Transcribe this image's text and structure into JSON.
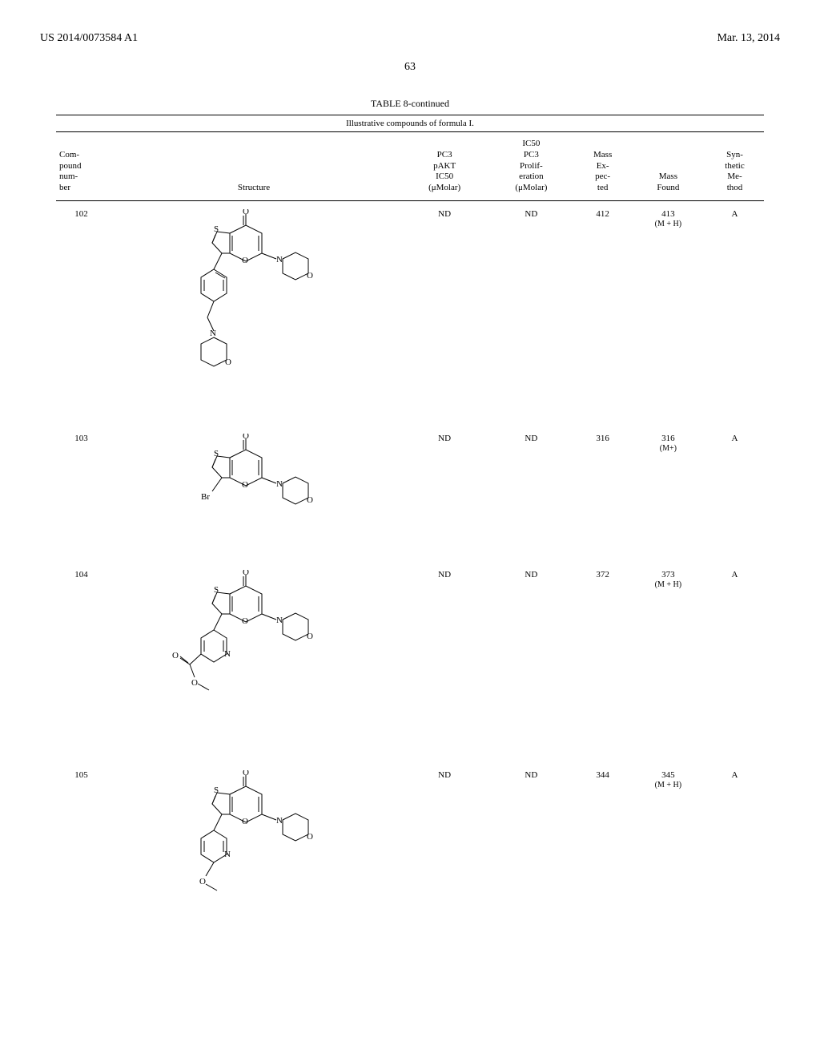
{
  "header": {
    "pub_number": "US 2014/0073584 A1",
    "pub_date": "Mar. 13, 2014",
    "page_number": "63"
  },
  "table": {
    "title": "TABLE 8-continued",
    "subtitle": "Illustrative compounds of formula I.",
    "columns": {
      "compound": "Com-\npound\nnum-\nber",
      "structure": "Structure",
      "pakt": "PC3\npAKT\nIC50\n(μMolar)",
      "prolif": "IC50\nPC3\nProlif-\neration\n(μMolar)",
      "mass_exp": "Mass\nEx-\npec-\nted",
      "mass_found": "Mass\nFound",
      "method": "Syn-\nthetic\nMe-\nthod"
    },
    "rows": [
      {
        "compound": "102",
        "pakt": "ND",
        "prolif": "ND",
        "mass_exp": "412",
        "mass_found": "413",
        "mass_found_sub": "(M + H)",
        "method": "A",
        "structure_height": 260
      },
      {
        "compound": "103",
        "pakt": "ND",
        "prolif": "ND",
        "mass_exp": "316",
        "mass_found": "316",
        "mass_found_sub": "(M+)",
        "method": "A",
        "structure_height": 150
      },
      {
        "compound": "104",
        "pakt": "ND",
        "prolif": "ND",
        "mass_exp": "372",
        "mass_found": "373",
        "mass_found_sub": "(M + H)",
        "method": "A",
        "structure_height": 230
      },
      {
        "compound": "105",
        "pakt": "ND",
        "prolif": "ND",
        "mass_exp": "344",
        "mass_found": "345",
        "mass_found_sub": "(M + H)",
        "method": "A",
        "structure_height": 210
      }
    ],
    "styling": {
      "border_color": "#000000",
      "background_color": "#ffffff",
      "header_fontsize": 11,
      "body_fontsize": 11,
      "title_fontsize": 12
    }
  }
}
